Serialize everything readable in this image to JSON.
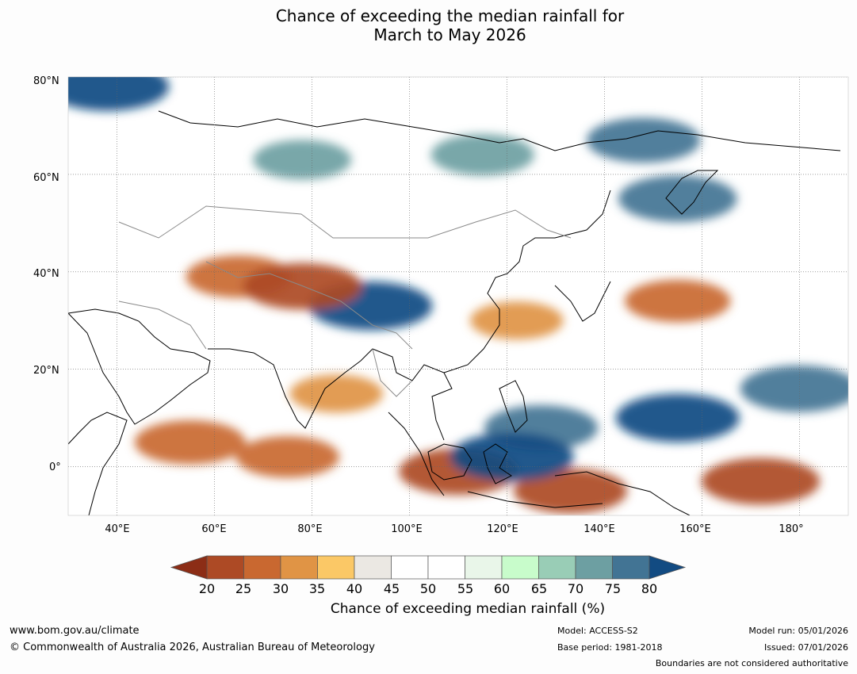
{
  "title": {
    "line1": "Chance of exceeding the median rainfall for",
    "line2": "March to May 2026"
  },
  "map": {
    "lat_labels": [
      "80°N",
      "60°N",
      "40°N",
      "20°N",
      "0°"
    ],
    "lon_labels": [
      "40°E",
      "60°E",
      "80°E",
      "100°E",
      "120°E",
      "140°E",
      "160°E",
      "180°"
    ],
    "lat_range": [
      -10,
      80
    ],
    "lon_range": [
      30,
      190
    ],
    "anomaly_regions": [
      {
        "name": "arctic-northwest",
        "value": 80,
        "lon": 38,
        "lat": 78
      },
      {
        "name": "west-siberia",
        "value": 70,
        "lon": 78,
        "lat": 63
      },
      {
        "name": "central-siberia",
        "value": 72,
        "lon": 115,
        "lat": 64
      },
      {
        "name": "east-siberia",
        "value": 76,
        "lon": 148,
        "lat": 67
      },
      {
        "name": "sea-of-okhotsk",
        "value": 78,
        "lon": 155,
        "lat": 55
      },
      {
        "name": "tibetan-plateau",
        "value": 80,
        "lon": 92,
        "lat": 33
      },
      {
        "name": "central-asia-dry",
        "value": 27,
        "lon": 65,
        "lat": 39
      },
      {
        "name": "karakoram-dry",
        "value": 22,
        "lon": 78,
        "lat": 37
      },
      {
        "name": "north-pacific-dry",
        "value": 27,
        "lon": 155,
        "lat": 34
      },
      {
        "name": "east-china-dry",
        "value": 32,
        "lon": 122,
        "lat": 30
      },
      {
        "name": "bay-of-bengal-dry",
        "value": 32,
        "lon": 85,
        "lat": 15
      },
      {
        "name": "indian-ocean-dry",
        "value": 28,
        "lon": 75,
        "lat": 2
      },
      {
        "name": "somali-dry",
        "value": 25,
        "lon": 55,
        "lat": 5
      },
      {
        "name": "borneo-dry",
        "value": 22,
        "lon": 110,
        "lat": -1
      },
      {
        "name": "banda-dry",
        "value": 24,
        "lon": 133,
        "lat": -5
      },
      {
        "name": "equatorial-pacific-dry",
        "value": 22,
        "lon": 172,
        "lat": -3
      },
      {
        "name": "western-pacific-wet",
        "value": 80,
        "lon": 155,
        "lat": 10
      },
      {
        "name": "pacific-wet-east",
        "value": 78,
        "lon": 180,
        "lat": 16
      },
      {
        "name": "philippines-wet",
        "value": 76,
        "lon": 127,
        "lat": 8
      },
      {
        "name": "sulawesi-wet",
        "value": 80,
        "lon": 121,
        "lat": 2
      }
    ]
  },
  "colorbar": {
    "ticks": [
      "20",
      "25",
      "30",
      "35",
      "40",
      "45",
      "50",
      "55",
      "60",
      "65",
      "70",
      "75",
      "80"
    ],
    "colors": [
      "#8c2d16",
      "#ad4a25",
      "#c96830",
      "#e09445",
      "#fbc866",
      "#ebe8e3",
      "#ffffff",
      "#ffffff",
      "#e9f6e9",
      "#c8fccb",
      "#99cdb6",
      "#6d9fa2",
      "#427494",
      "#124b82"
    ],
    "label": "Chance of exceeding median rainfall (%)"
  },
  "footer": {
    "website": "www.bom.gov.au/climate",
    "copyright": "© Commonwealth of Australia 2026, Australian Bureau of Meteorology",
    "model": "Model: ACCESS-S2",
    "base_period": "Base period: 1981-2018",
    "model_run": "Model run: 05/01/2026",
    "issued": "Issued: 07/01/2026",
    "disclaimer": "Boundaries are not considered authoritative"
  }
}
